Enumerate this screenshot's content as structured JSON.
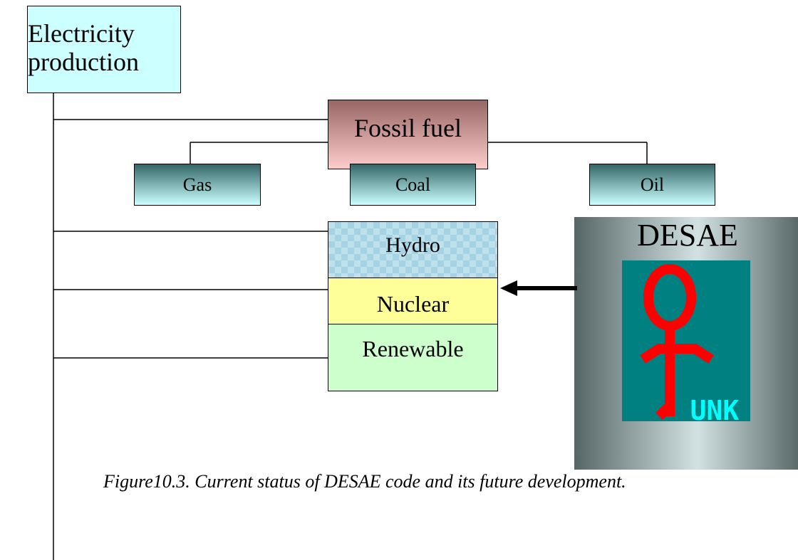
{
  "nodes": [
    {
      "label": "Electricity production"
    },
    {
      "label": "Fossil fuel"
    },
    {
      "label": "Gas"
    },
    {
      "label": "Coal"
    },
    {
      "label": "Oil"
    },
    {
      "label": "Hydro"
    },
    {
      "label": "Nuclear"
    },
    {
      "label": "Renewable"
    }
  ],
  "logo": {
    "title": "DESAE",
    "badge": "UNK"
  },
  "caption": "Figure10.3. Current status of DESAE code and its future development."
}
